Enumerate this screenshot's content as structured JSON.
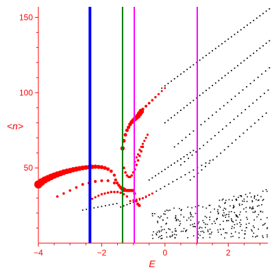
{
  "chart_data": {
    "type": "scatter",
    "title": "",
    "xlabel": "E",
    "ylabel": "<n>",
    "xlim": [
      -4,
      3.25
    ],
    "ylim": [
      0,
      157
    ],
    "xticks": [
      -4,
      -2,
      0,
      2
    ],
    "yticks": [
      50,
      100,
      150
    ],
    "grid": false,
    "colors": {
      "axes": "#ff0000",
      "labels": "#ff0000",
      "black_points": "#000000",
      "red_points": "#ff0000",
      "line_blue": "#0000ff",
      "line_green": "#007a00",
      "line_magenta": "#ff00ff"
    },
    "vertical_lines": [
      {
        "x": -2.37,
        "color": "#0000ff",
        "width": 4
      },
      {
        "x": -1.34,
        "color": "#007a00",
        "width": 2
      },
      {
        "x": -0.97,
        "color": "#ff00ff",
        "width": 2
      },
      {
        "x": 1.02,
        "color": "#ff00ff",
        "width": 2
      }
    ],
    "red_branches": [
      {
        "x": [
          -4.0,
          -3.9,
          -3.8,
          -3.7,
          -3.6,
          -3.5,
          -3.4,
          -3.3,
          -3.2,
          -3.1,
          -3.0,
          -2.9,
          -2.8,
          -2.7,
          -2.6,
          -2.5,
          -2.4,
          -2.3,
          -2.2,
          -2.1,
          -2.0,
          -1.9,
          -1.8,
          -1.7,
          -1.6
        ],
        "y": [
          39.0,
          40.6,
          42.0,
          43.0,
          44.0,
          44.9,
          45.7,
          46.4,
          47.1,
          47.7,
          48.2,
          48.8,
          49.2,
          49.6,
          50.0,
          50.3,
          50.5,
          50.7,
          50.8,
          50.7,
          50.5,
          50.0,
          49.2,
          47.8,
          45.2
        ],
        "size": [
          6,
          5.5,
          5.2,
          5,
          4.8,
          4.6,
          4.4,
          4.3,
          4.2,
          4,
          3.9,
          3.8,
          3.7,
          3.6,
          3.5,
          3.4,
          3.3,
          3.2,
          3.1,
          3,
          2.9,
          2.8,
          2.6,
          2.4,
          2.2
        ]
      },
      {
        "x": [
          -1.56,
          -1.51,
          -1.46,
          -1.41,
          -1.36,
          -1.31,
          -1.26,
          -1.21,
          -1.16,
          -1.11,
          -1.06,
          -1.01,
          -0.96,
          -0.91,
          -0.86,
          -0.81
        ],
        "y": [
          42.0,
          40.0,
          38.5,
          37.2,
          36.2,
          35.6,
          35.3,
          35.0,
          35.0,
          35.0,
          35.0,
          35.0,
          33.0,
          28.0,
          26.0,
          25.0
        ],
        "size": [
          2.2,
          2.2,
          2.2,
          2.3,
          2.6,
          3.5,
          2.6,
          2.4,
          2.4,
          2.4,
          2.4,
          2.4,
          2.2,
          2.2,
          2.2,
          2.2
        ]
      },
      {
        "x": [
          -3.4,
          -3.2,
          -3.0,
          -2.8,
          -2.6,
          -2.4,
          -2.2,
          -2.0,
          -1.8,
          -1.6,
          -1.4
        ],
        "y": [
          31.0,
          33.0,
          35.0,
          37.0,
          39.0,
          40.0,
          41.0,
          41.5,
          41.5,
          40.0,
          37.0
        ],
        "size": [
          1.8,
          1.8,
          1.8,
          1.9,
          2,
          2,
          2.1,
          2.1,
          2.1,
          2.1,
          2
        ]
      },
      {
        "x": [
          -2.3,
          -2.2,
          -2.1,
          -2.0,
          -1.9,
          -1.8,
          -1.7,
          -1.6,
          -1.5,
          -1.4,
          -1.3,
          -1.2
        ],
        "y": [
          29.5,
          30.5,
          31.5,
          32.5,
          33.0,
          33.5,
          34.0,
          34.0,
          34.0,
          33.5,
          32.5,
          31.0
        ],
        "size": [
          1.6,
          1.6,
          1.6,
          1.7,
          1.7,
          1.7,
          1.8,
          1.8,
          1.8,
          1.8,
          1.7,
          1.7
        ]
      },
      {
        "x": [
          -1.34,
          -1.3,
          -1.25,
          -1.2,
          -1.15,
          -1.1,
          -1.05,
          -1.0,
          -0.95,
          -0.9,
          -0.85,
          -0.8,
          -0.75
        ],
        "y": [
          63.0,
          68.0,
          72.0,
          75.0,
          77.0,
          79.0,
          80.5,
          81.5,
          82.5,
          83.5,
          84.5,
          86.0,
          87.5
        ],
        "size": [
          3.2,
          2.8,
          2.6,
          2.6,
          2.6,
          2.8,
          3,
          3.2,
          3.4,
          3.6,
          3.8,
          4,
          4
        ]
      },
      {
        "x": [
          -0.7,
          -0.6,
          -0.5,
          -0.4,
          -0.3,
          -0.2,
          -0.1,
          0.0
        ],
        "y": [
          89.0,
          91.0,
          93.0,
          95.0,
          97.0,
          99.0,
          101.0,
          103.0
        ],
        "size": [
          2.2,
          2,
          1.9,
          1.8,
          1.7,
          1.6,
          1.5,
          1.4
        ]
      },
      {
        "x": [
          -1.3,
          -1.25,
          -1.2,
          -1.15,
          -1.1,
          -1.05,
          -1.0,
          -0.95,
          -0.9,
          -0.85,
          -0.8,
          -0.75,
          -0.7
        ],
        "y": [
          50.0,
          47.0,
          45.0,
          44.0,
          44.0,
          45.0,
          47.0,
          49.0,
          52.0,
          55.0,
          58.0,
          61.0,
          64.0
        ],
        "size": [
          2,
          1.9,
          1.8,
          1.8,
          1.8,
          1.8,
          1.8,
          1.8,
          1.8,
          1.8,
          1.8,
          1.8,
          1.8
        ]
      },
      {
        "x": [
          -0.95,
          -0.9,
          -0.85,
          -0.8,
          -0.75,
          -0.7,
          -0.65,
          -0.6,
          -0.55
        ],
        "y": [
          54.0,
          57.0,
          59.0,
          62.0,
          64.0,
          66.0,
          68.0,
          70.0,
          72.0
        ],
        "size": [
          1.6,
          1.6,
          1.6,
          1.6,
          1.6,
          1.6,
          1.6,
          1.6,
          1.6
        ]
      },
      {
        "x": [
          -1.1,
          -1.0,
          -0.9,
          -0.8,
          -0.7,
          -0.6,
          -0.5,
          -0.4
        ],
        "y": [
          28.0,
          28.5,
          29.0,
          29.5,
          30.0,
          31.0,
          32.0,
          33.0
        ],
        "size": [
          1.5,
          1.5,
          1.5,
          1.5,
          1.5,
          1.5,
          1.5,
          1.5
        ]
      }
    ],
    "black_branches": [
      {
        "x_start": -0.1,
        "x_end": 3.3,
        "step": 0.1,
        "y0": 103.0,
        "slope": 15.5
      },
      {
        "x_start": 0.0,
        "x_end": 3.3,
        "step": 0.1,
        "y0": 80.0,
        "slope": 16.5
      },
      {
        "x_start": 0.3,
        "x_end": 3.3,
        "step": 0.12,
        "y0": 64.0,
        "slope": 17.5
      },
      {
        "x_start": 0.5,
        "x_end": 3.3,
        "step": 0.12,
        "y0": 52.0,
        "slope": 18.0
      },
      {
        "x_start": 0.8,
        "x_end": 3.3,
        "step": 0.12,
        "y0": 42.0,
        "slope": 18.5
      },
      {
        "x_start": -0.5,
        "x_end": 0.9,
        "step": 0.1,
        "y0": 42.0,
        "slope": 14.0
      },
      {
        "x_start": -0.4,
        "x_end": 1.5,
        "step": 0.13,
        "y0": 33.0,
        "slope": 12.0
      },
      {
        "x_start": -1.4,
        "x_end": -0.6,
        "step": 0.1,
        "y0": 24.0,
        "slope": 8.0
      },
      {
        "x_start": -2.6,
        "x_end": -1.5,
        "step": 0.12,
        "y0": 22.0,
        "slope": 4.0
      }
    ],
    "black_cloud": {
      "x_range": [
        -0.4,
        3.25
      ],
      "y_range": [
        3,
        36
      ],
      "count": 300
    }
  }
}
